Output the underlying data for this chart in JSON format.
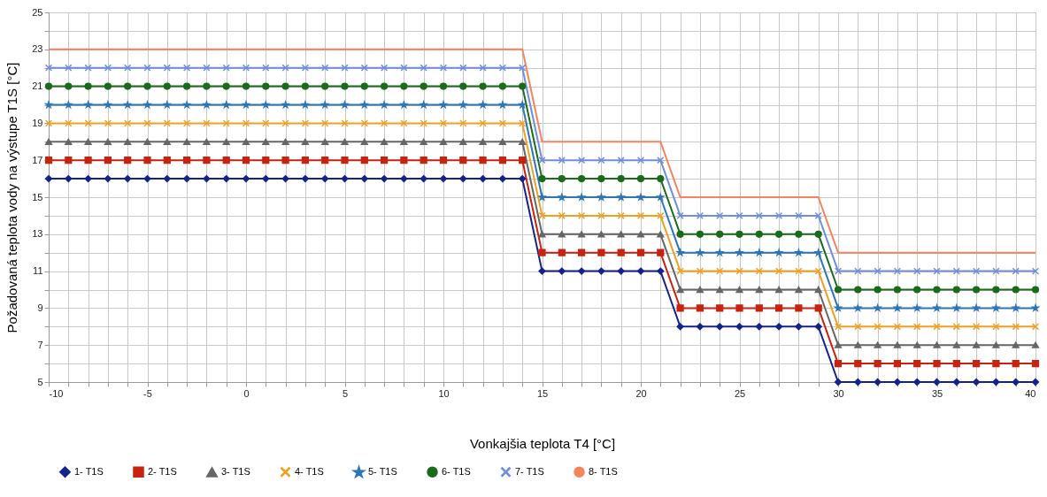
{
  "chart_data": {
    "type": "line",
    "xlabel": "Vonkajšia teplota T4 [°C]",
    "ylabel": "Požadovaná teplota vody na výstupe T1S [°C]",
    "x": [
      -10,
      -9,
      -8,
      -7,
      -6,
      -5,
      -4,
      -3,
      -2,
      -1,
      0,
      1,
      2,
      3,
      4,
      5,
      6,
      7,
      8,
      9,
      10,
      11,
      12,
      13,
      14,
      15,
      16,
      17,
      18,
      19,
      20,
      21,
      22,
      23,
      24,
      25,
      26,
      27,
      28,
      29,
      30,
      31,
      32,
      33,
      34,
      35,
      36,
      37,
      38,
      39,
      40
    ],
    "xlim": [
      -10,
      40
    ],
    "ylim": [
      5,
      25
    ],
    "xticks": [
      -10,
      {
        "value": -9,
        "label": null
      },
      {
        "value": -8,
        "label": null
      },
      {
        "value": -7,
        "label": null
      },
      {
        "value": -6,
        "label": null
      },
      -5,
      {
        "value": -4,
        "label": null
      },
      {
        "value": -3,
        "label": null
      },
      {
        "value": -2,
        "label": null
      },
      {
        "value": -1,
        "label": null
      },
      0,
      {
        "value": 1,
        "label": null
      },
      {
        "value": 2,
        "label": null
      },
      {
        "value": 3,
        "label": null
      },
      {
        "value": 4,
        "label": null
      },
      5,
      {
        "value": 6,
        "label": null
      },
      {
        "value": 7,
        "label": null
      },
      {
        "value": 8,
        "label": null
      },
      {
        "value": 9,
        "label": null
      },
      10,
      {
        "value": 11,
        "label": null
      },
      {
        "value": 12,
        "label": null
      },
      {
        "value": 13,
        "label": null
      },
      {
        "value": 14,
        "label": null
      },
      15,
      {
        "value": 16,
        "label": null
      },
      {
        "value": 17,
        "label": null
      },
      {
        "value": 18,
        "label": null
      },
      {
        "value": 19,
        "label": null
      },
      20,
      {
        "value": 21,
        "label": null
      },
      {
        "value": 22,
        "label": null
      },
      {
        "value": 23,
        "label": null
      },
      {
        "value": 24,
        "label": null
      },
      25,
      {
        "value": 26,
        "label": null
      },
      {
        "value": 27,
        "label": null
      },
      {
        "value": 28,
        "label": null
      },
      {
        "value": 29,
        "label": null
      },
      30,
      {
        "value": 31,
        "label": null
      },
      {
        "value": 32,
        "label": null
      },
      {
        "value": 33,
        "label": null
      },
      {
        "value": 34,
        "label": null
      },
      35,
      {
        "value": 36,
        "label": null
      },
      {
        "value": 37,
        "label": null
      },
      {
        "value": 38,
        "label": null
      },
      {
        "value": 39,
        "label": null
      },
      40
    ],
    "yticks": [
      5,
      {
        "value": 6,
        "label": null
      },
      7,
      {
        "value": 8,
        "label": null
      },
      9,
      {
        "value": 10,
        "label": null
      },
      11,
      {
        "value": 12,
        "label": null
      },
      13,
      {
        "value": 14,
        "label": null
      },
      15,
      {
        "value": 16,
        "label": null
      },
      17,
      {
        "value": 18,
        "label": null
      },
      19,
      {
        "value": 20,
        "label": null
      },
      21,
      {
        "value": 22,
        "label": null
      },
      23,
      {
        "value": 24,
        "label": null
      },
      25
    ],
    "grid": true,
    "legend": "bottom",
    "series": [
      {
        "name": "1- T1S",
        "color": "#14238c",
        "marker": "diamond",
        "values": [
          16,
          16,
          16,
          16,
          16,
          16,
          16,
          16,
          16,
          16,
          16,
          16,
          16,
          16,
          16,
          16,
          16,
          16,
          16,
          16,
          16,
          16,
          16,
          16,
          16,
          11,
          11,
          11,
          11,
          11,
          11,
          11,
          8,
          8,
          8,
          8,
          8,
          8,
          8,
          8,
          5,
          5,
          5,
          5,
          5,
          5,
          5,
          5,
          5,
          5,
          5
        ]
      },
      {
        "name": "2- T1S",
        "color": "#c8230f",
        "marker": "square",
        "values": [
          17,
          17,
          17,
          17,
          17,
          17,
          17,
          17,
          17,
          17,
          17,
          17,
          17,
          17,
          17,
          17,
          17,
          17,
          17,
          17,
          17,
          17,
          17,
          17,
          17,
          12,
          12,
          12,
          12,
          12,
          12,
          12,
          9,
          9,
          9,
          9,
          9,
          9,
          9,
          9,
          6,
          6,
          6,
          6,
          6,
          6,
          6,
          6,
          6,
          6,
          6
        ]
      },
      {
        "name": "3- T1S",
        "color": "#666666",
        "marker": "triangle",
        "values": [
          18,
          18,
          18,
          18,
          18,
          18,
          18,
          18,
          18,
          18,
          18,
          18,
          18,
          18,
          18,
          18,
          18,
          18,
          18,
          18,
          18,
          18,
          18,
          18,
          18,
          13,
          13,
          13,
          13,
          13,
          13,
          13,
          10,
          10,
          10,
          10,
          10,
          10,
          10,
          10,
          7,
          7,
          7,
          7,
          7,
          7,
          7,
          7,
          7,
          7,
          7
        ]
      },
      {
        "name": "4- T1S",
        "color": "#f0a020",
        "marker": "cross",
        "values": [
          19,
          19,
          19,
          19,
          19,
          19,
          19,
          19,
          19,
          19,
          19,
          19,
          19,
          19,
          19,
          19,
          19,
          19,
          19,
          19,
          19,
          19,
          19,
          19,
          19,
          14,
          14,
          14,
          14,
          14,
          14,
          14,
          11,
          11,
          11,
          11,
          11,
          11,
          11,
          11,
          8,
          8,
          8,
          8,
          8,
          8,
          8,
          8,
          8,
          8,
          8
        ]
      },
      {
        "name": "5- T1S",
        "color": "#2e75b6",
        "marker": "star",
        "values": [
          20,
          20,
          20,
          20,
          20,
          20,
          20,
          20,
          20,
          20,
          20,
          20,
          20,
          20,
          20,
          20,
          20,
          20,
          20,
          20,
          20,
          20,
          20,
          20,
          20,
          15,
          15,
          15,
          15,
          15,
          15,
          15,
          12,
          12,
          12,
          12,
          12,
          12,
          12,
          12,
          9,
          9,
          9,
          9,
          9,
          9,
          9,
          9,
          9,
          9,
          9
        ]
      },
      {
        "name": "6- T1S",
        "color": "#1a6b1a",
        "marker": "circle",
        "values": [
          21,
          21,
          21,
          21,
          21,
          21,
          21,
          21,
          21,
          21,
          21,
          21,
          21,
          21,
          21,
          21,
          21,
          21,
          21,
          21,
          21,
          21,
          21,
          21,
          21,
          16,
          16,
          16,
          16,
          16,
          16,
          16,
          13,
          13,
          13,
          13,
          13,
          13,
          13,
          13,
          10,
          10,
          10,
          10,
          10,
          10,
          10,
          10,
          10,
          10,
          10
        ]
      },
      {
        "name": "7- T1S",
        "color": "#6f8fdb",
        "marker": "cross",
        "values": [
          22,
          22,
          22,
          22,
          22,
          22,
          22,
          22,
          22,
          22,
          22,
          22,
          22,
          22,
          22,
          22,
          22,
          22,
          22,
          22,
          22,
          22,
          22,
          22,
          22,
          17,
          17,
          17,
          17,
          17,
          17,
          17,
          14,
          14,
          14,
          14,
          14,
          14,
          14,
          14,
          11,
          11,
          11,
          11,
          11,
          11,
          11,
          11,
          11,
          11,
          11
        ]
      },
      {
        "name": "8- T1S",
        "color": "#f5845a",
        "marker": "none",
        "values": [
          23,
          23,
          23,
          23,
          23,
          23,
          23,
          23,
          23,
          23,
          23,
          23,
          23,
          23,
          23,
          23,
          23,
          23,
          23,
          23,
          23,
          23,
          23,
          23,
          23,
          18,
          18,
          18,
          18,
          18,
          18,
          18,
          15,
          15,
          15,
          15,
          15,
          15,
          15,
          15,
          12,
          12,
          12,
          12,
          12,
          12,
          12,
          12,
          12,
          12,
          12
        ]
      }
    ]
  }
}
